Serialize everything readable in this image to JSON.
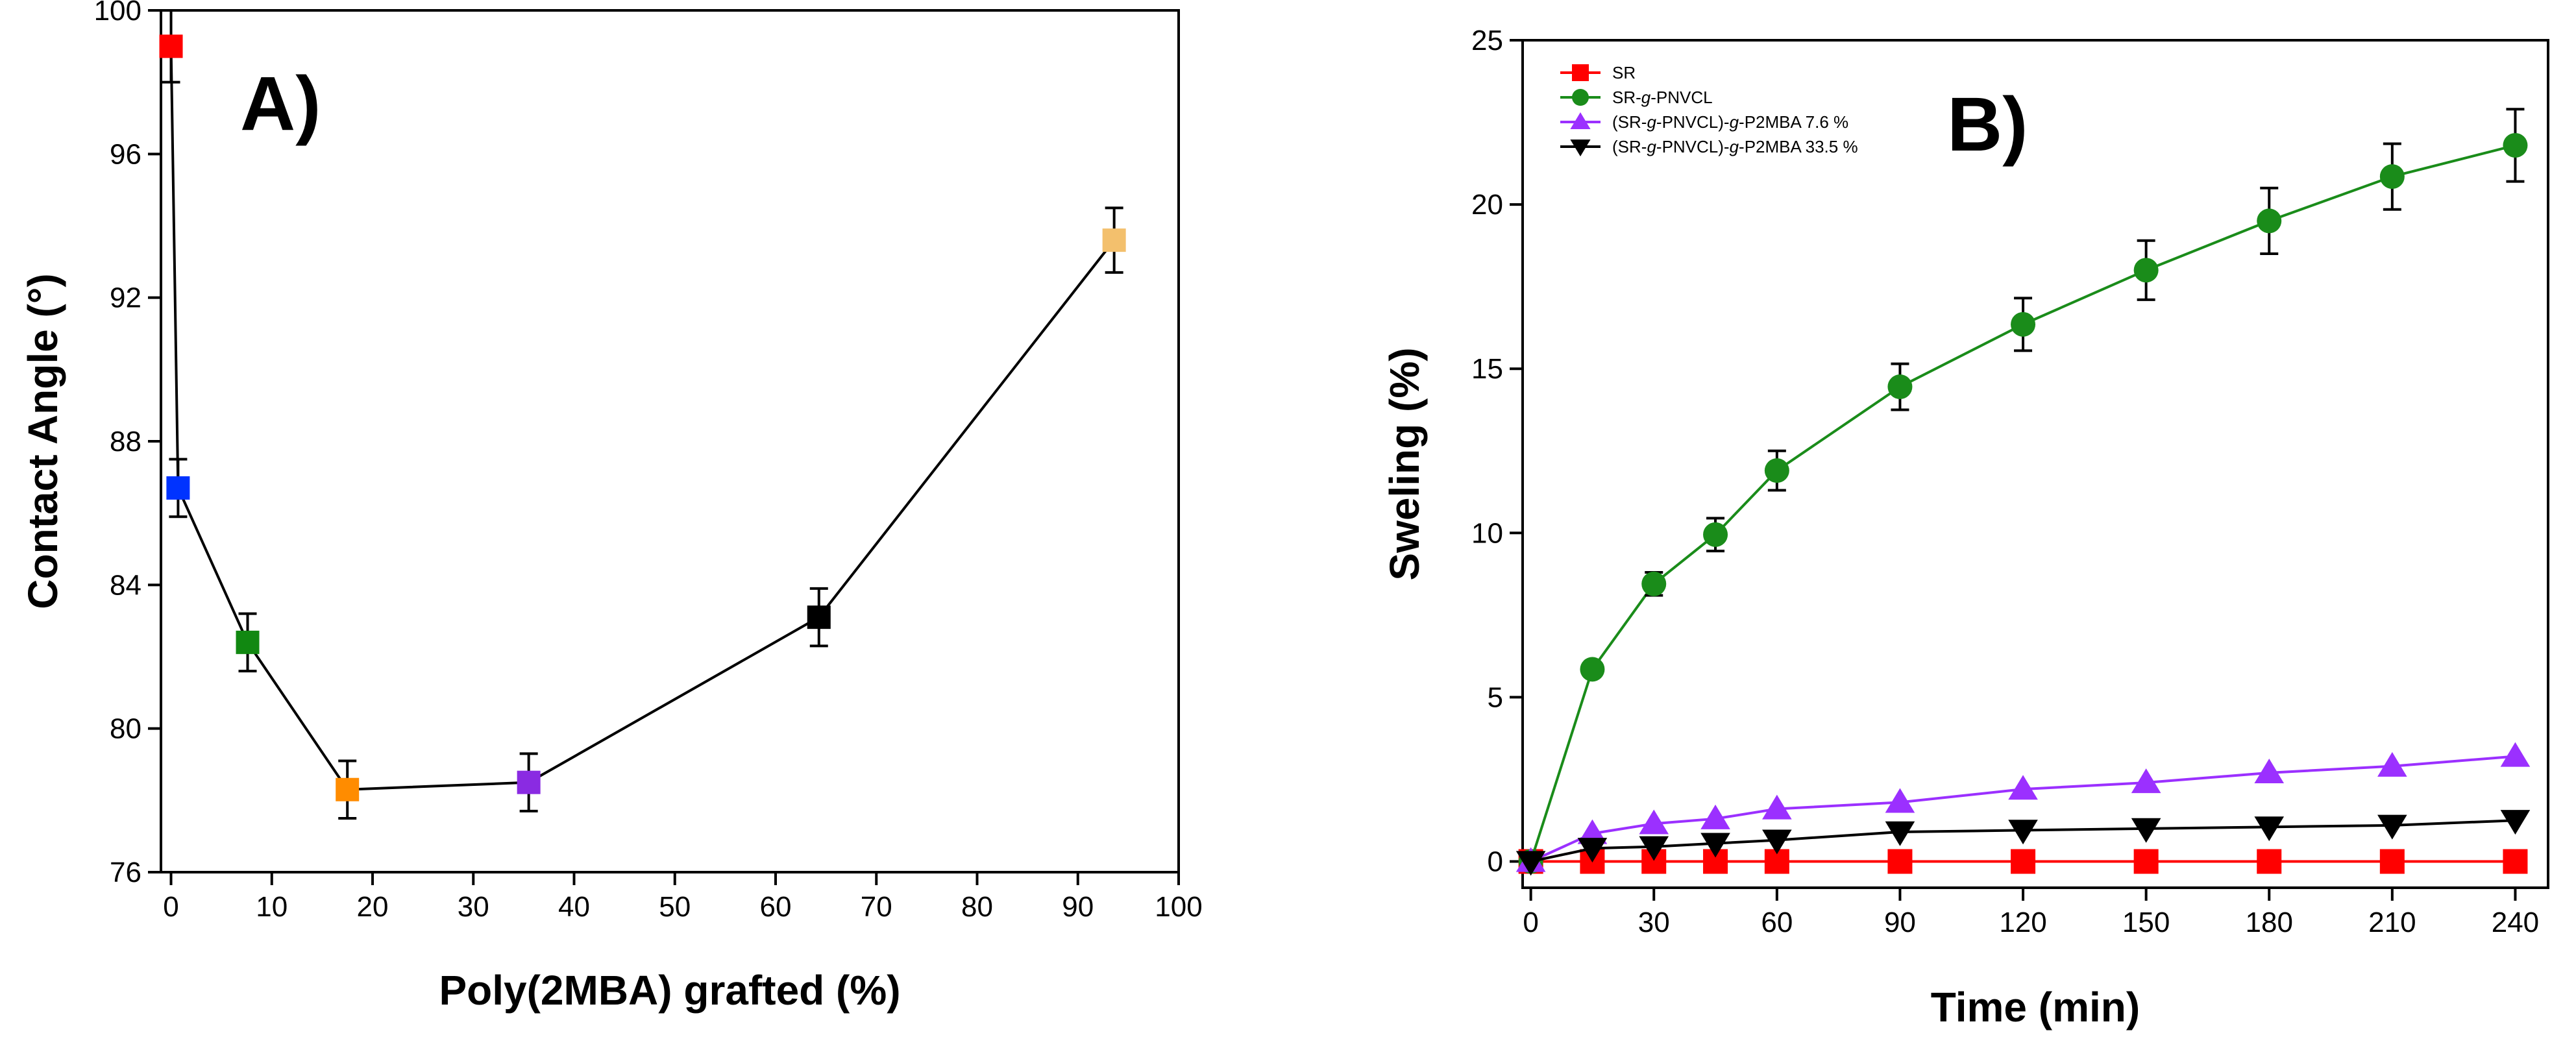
{
  "chart_data": [
    {
      "type": "scatter",
      "panel_label": "A)",
      "title": "",
      "xlabel": "Poly(2MBA) grafted (%)",
      "ylabel": "Contact Angle (°)",
      "xlim": [
        -1,
        100
      ],
      "ylim": [
        76,
        100
      ],
      "xticks": [
        0,
        10,
        20,
        30,
        40,
        50,
        60,
        70,
        80,
        90,
        100
      ],
      "yticks": [
        76,
        80,
        84,
        88,
        92,
        96,
        100
      ],
      "grid": false,
      "points": [
        {
          "x": 0,
          "y": 99.0,
          "err": 1.0,
          "color": "#ff0000"
        },
        {
          "x": 0.7,
          "y": 86.7,
          "err": 0.8,
          "color": "#0033ff"
        },
        {
          "x": 7.6,
          "y": 82.4,
          "err": 0.8,
          "color": "#118811"
        },
        {
          "x": 17.5,
          "y": 78.3,
          "err": 0.8,
          "color": "#ff8c00"
        },
        {
          "x": 35.5,
          "y": 78.5,
          "err": 0.8,
          "color": "#8a2be2"
        },
        {
          "x": 64.3,
          "y": 83.1,
          "err": 0.8,
          "color": "#000000"
        },
        {
          "x": 93.6,
          "y": 93.6,
          "err": 0.9,
          "color": "#f3c06d"
        }
      ]
    },
    {
      "type": "line",
      "panel_label": "B)",
      "title": "",
      "xlabel": "Time (min)",
      "ylabel": "Sweling (%)",
      "xlim": [
        -2,
        248
      ],
      "ylim": [
        -0.8,
        25
      ],
      "xticks": [
        0,
        30,
        60,
        90,
        120,
        150,
        180,
        210,
        240
      ],
      "yticks": [
        0,
        5,
        10,
        15,
        20,
        25
      ],
      "grid": false,
      "legend_position": "top-left",
      "x": [
        0,
        15,
        30,
        45,
        60,
        90,
        120,
        150,
        180,
        210,
        240
      ],
      "series": [
        {
          "name": "SR",
          "legend": [
            "SR"
          ],
          "marker": "square",
          "color": "#ff0000",
          "values": [
            0,
            0,
            0,
            0,
            0,
            0,
            0,
            0,
            0,
            0,
            0
          ],
          "errors": [
            0,
            0,
            0,
            0,
            0,
            0,
            0,
            0,
            0,
            0,
            0
          ]
        },
        {
          "name": "SR-g-PNVCL",
          "legend": [
            "SR-",
            "g",
            "-PNVCL"
          ],
          "marker": "circle",
          "color": "#1a8c1a",
          "values": [
            0,
            5.85,
            8.45,
            9.95,
            11.9,
            14.45,
            16.35,
            18.0,
            19.5,
            20.85,
            21.8
          ],
          "errors": [
            0,
            0,
            0.35,
            0.5,
            0.6,
            0.7,
            0.8,
            0.9,
            1.0,
            1.0,
            1.1
          ]
        },
        {
          "name": "(SR-g-PNVCL)-g-P2MBA 7.6 %",
          "legend": [
            "(SR-",
            "g",
            "-PNVCL)-",
            "g",
            "-P2MBA 7.6 %"
          ],
          "marker": "triangle-up",
          "color": "#9b30ff",
          "values": [
            0,
            0.85,
            1.15,
            1.3,
            1.6,
            1.8,
            2.2,
            2.4,
            2.7,
            2.9,
            3.2
          ],
          "errors": [
            0,
            0,
            0,
            0,
            0,
            0,
            0,
            0,
            0,
            0,
            0
          ]
        },
        {
          "name": "(SR-g-PNVCL)-g-P2MBA 33.5 %",
          "legend": [
            "(SR-",
            "g",
            "-PNVCL)-",
            "g",
            "-P2MBA 33.5 %"
          ],
          "marker": "triangle-down",
          "color": "#000000",
          "values": [
            0,
            0.4,
            0.45,
            0.55,
            0.65,
            0.9,
            0.95,
            1.0,
            1.05,
            1.1,
            1.25
          ],
          "errors": [
            0,
            0,
            0,
            0,
            0,
            0,
            0,
            0,
            0,
            0,
            0
          ]
        }
      ]
    }
  ]
}
